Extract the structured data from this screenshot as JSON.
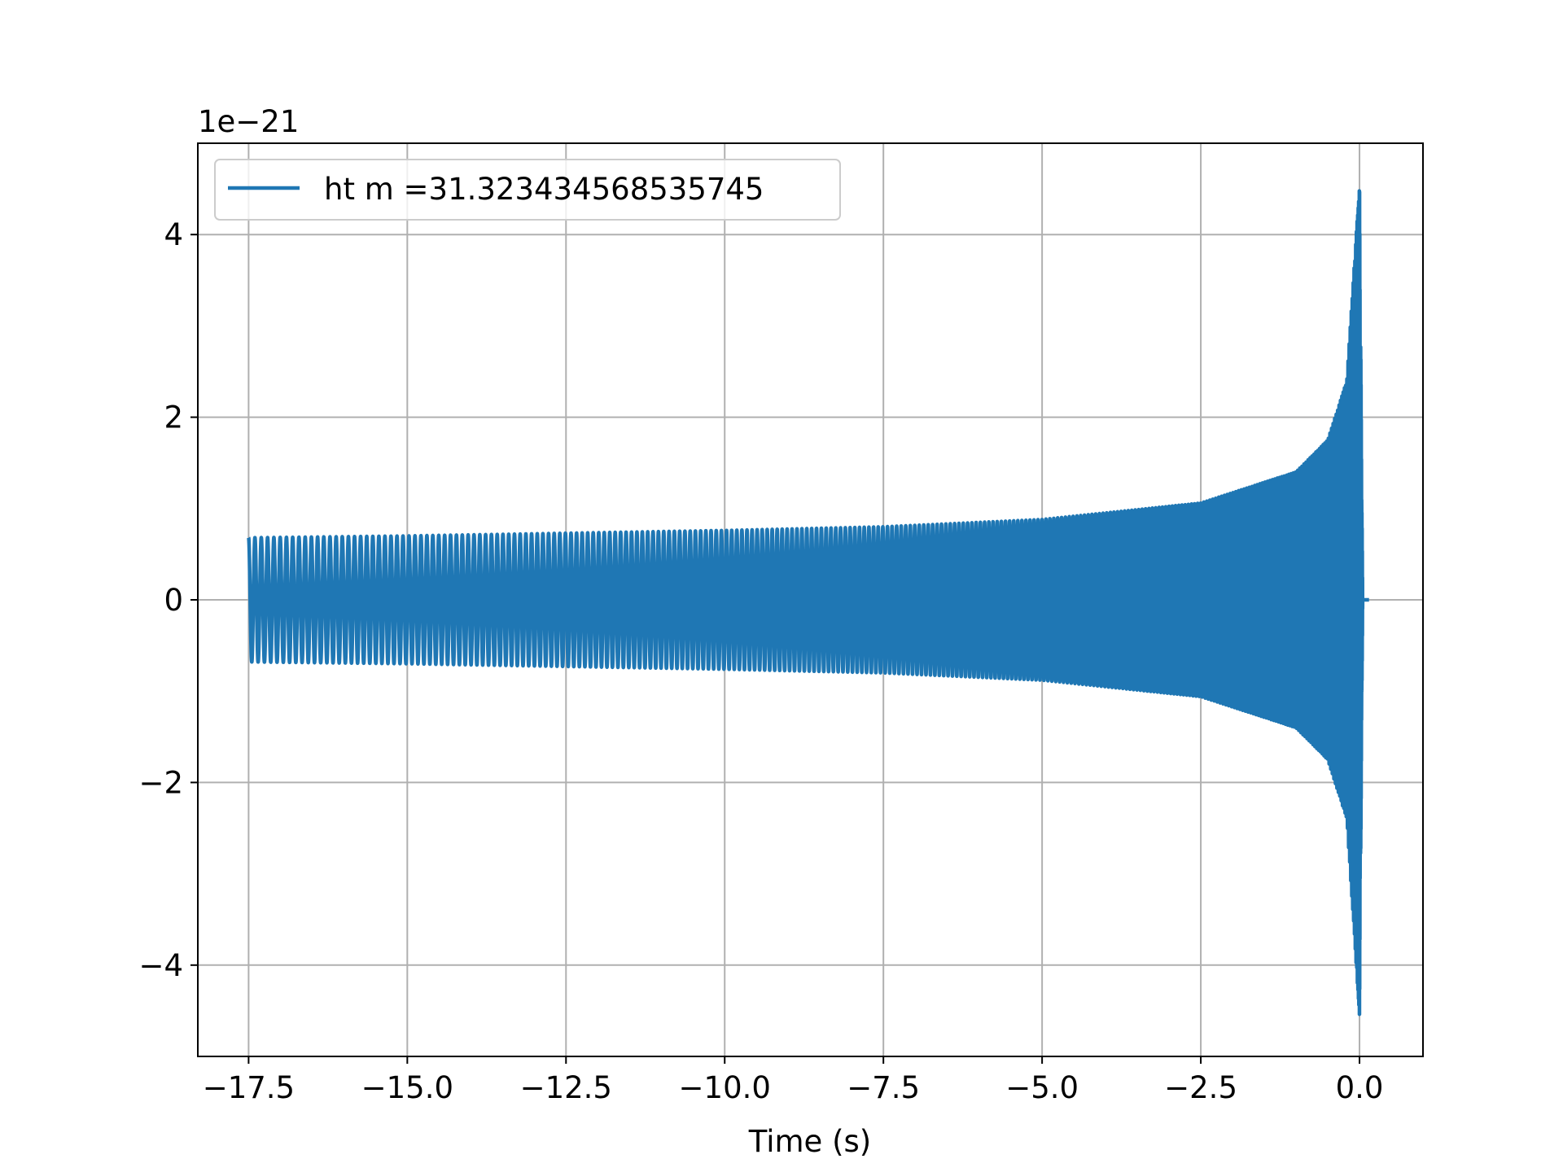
{
  "chart_data": {
    "type": "line",
    "title": "",
    "xlabel": "Time (s)",
    "ylabel": "",
    "y_offset_label": "1e−21",
    "xlim": [
      -18.3,
      1.0
    ],
    "ylim": [
      -5,
      5
    ],
    "xticks": [
      -17.5,
      -15.0,
      -12.5,
      -10.0,
      -7.5,
      -5.0,
      -2.5,
      0.0
    ],
    "xtick_labels": [
      "−17.5",
      "−15.0",
      "−12.5",
      "−10.0",
      "−7.5",
      "−5.0",
      "−2.5",
      "0.0"
    ],
    "yticks": [
      -4,
      -2,
      0,
      2,
      4
    ],
    "ytick_labels": [
      "−4",
      "−2",
      "0",
      "2",
      "4"
    ],
    "grid": true,
    "legend_position": "top-left",
    "series": [
      {
        "name": "ht m =31.323434568535745",
        "color": "#1f77b4",
        "t_start": -17.5,
        "t_merger": 0.0,
        "t_end": 0.15,
        "initial_frequency_hz": 10,
        "amplitude_envelope": [
          {
            "t": -17.5,
            "amp": 0.68
          },
          {
            "t": -15.0,
            "amp": 0.7
          },
          {
            "t": -12.5,
            "amp": 0.73
          },
          {
            "t": -10.0,
            "amp": 0.76
          },
          {
            "t": -7.5,
            "amp": 0.8
          },
          {
            "t": -5.0,
            "amp": 0.88
          },
          {
            "t": -2.5,
            "amp": 1.06
          },
          {
            "t": -1.0,
            "amp": 1.4
          },
          {
            "t": -0.5,
            "amp": 1.75
          },
          {
            "t": -0.2,
            "amp": 2.4
          },
          {
            "t": 0.0,
            "amp": 4.55
          },
          {
            "t": 0.05,
            "amp": 0.0
          },
          {
            "t": 0.15,
            "amp": 0.0
          }
        ]
      }
    ]
  }
}
